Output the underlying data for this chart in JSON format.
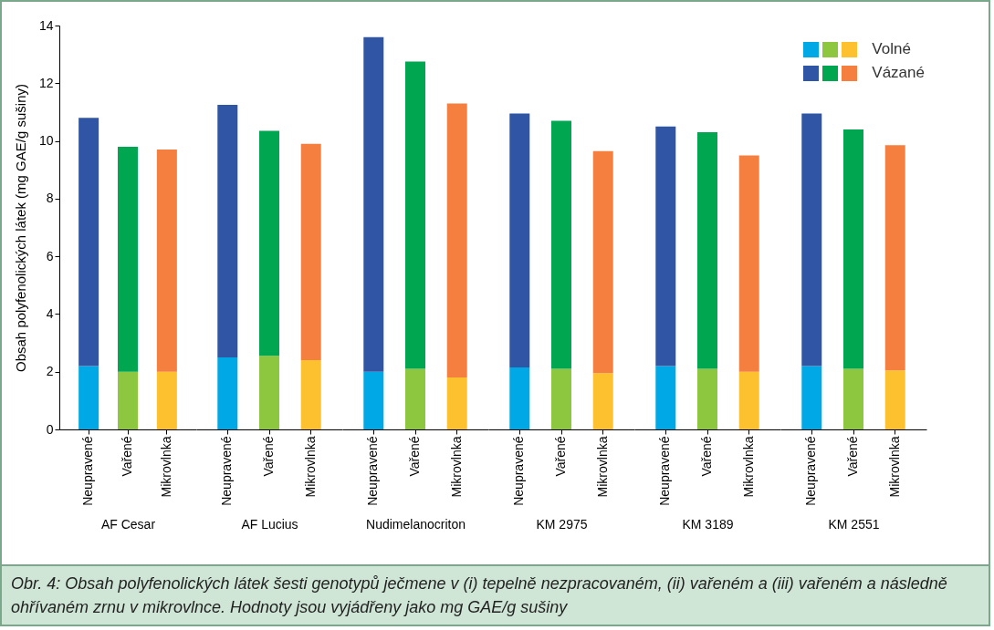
{
  "chart_data": [
    {
      "type": "bar",
      "stacked": true,
      "ylabel": "Obsah polyfenolických látek (mg GAE/g sušiny)",
      "xlabel": "AF Cesar",
      "legend": "top right",
      "categories": [
        "Neupravené",
        "Vařené",
        "Mikrovlnka"
      ],
      "ylim": [
        0,
        14
      ],
      "yticks": [
        0,
        2,
        4,
        6,
        8,
        10,
        12,
        14
      ],
      "annotations": [
        "Obr. 4: Obsah polyfenolických látek šesti genotypů ječmene v (i) tepelně nezpracovaném, (ii) vařeném a (iii) vařeném a následně ohřívaném zrnu v mikrovlnce. Hodnoty jsou vyjádřeny jako mg GAE/g sušiny"
      ],
      "series": [
        {
          "name": "Volné",
          "colors": [
            "#00a9e6",
            "#8dc63f",
            "#fdc02f"
          ],
          "values": [
            2.2,
            2.0,
            2.0
          ]
        },
        {
          "name": "Vázané",
          "colors": [
            "#2f55a4",
            "#00a650",
            "#f47f3e"
          ],
          "values": [
            8.6,
            7.8,
            7.7
          ]
        }
      ]
    },
    {
      "type": "bar",
      "stacked": true,
      "xlabel": "AF Lucius",
      "categories": [
        "Neupravené",
        "Vařené",
        "Mikrovlnka"
      ],
      "ylim": [
        0,
        14
      ],
      "yticks": [
        0,
        2,
        4,
        6,
        8,
        10,
        12,
        14
      ],
      "tick_labels": "x",
      "series": [
        {
          "colors": [
            "#00a9e6",
            "#8dc63f",
            "#fdc02f"
          ],
          "values": [
            2.5,
            2.55,
            2.4
          ]
        },
        {
          "colors": [
            "#2f55a4",
            "#00a650",
            "#f47f3e"
          ],
          "values": [
            8.75,
            7.8,
            7.5
          ]
        }
      ]
    },
    {
      "type": "bar",
      "stacked": true,
      "xlabel": "Nudimelanocriton",
      "categories": [
        "Neupravené",
        "Vařené",
        "Mikrovlnka"
      ],
      "ylim": [
        0,
        14
      ],
      "yticks": [
        0,
        2,
        4,
        6,
        8,
        10,
        12,
        14
      ],
      "tick_labels": "x",
      "series": [
        {
          "colors": [
            "#00a9e6",
            "#8dc63f",
            "#fdc02f"
          ],
          "values": [
            2.0,
            2.1,
            1.8
          ]
        },
        {
          "colors": [
            "#2f55a4",
            "#00a650",
            "#f47f3e"
          ],
          "values": [
            11.6,
            10.65,
            9.5
          ]
        }
      ]
    },
    {
      "type": "bar",
      "stacked": true,
      "xlabel": "KM 2975",
      "categories": [
        "Neupravené",
        "Vařené",
        "Mikrovlnka"
      ],
      "ylim": [
        0,
        14
      ],
      "yticks": [
        0,
        2,
        4,
        6,
        8,
        10,
        12,
        14
      ],
      "tick_labels": "x",
      "series": [
        {
          "colors": [
            "#00a9e6",
            "#8dc63f",
            "#fdc02f"
          ],
          "values": [
            2.15,
            2.1,
            1.95
          ]
        },
        {
          "colors": [
            "#2f55a4",
            "#00a650",
            "#f47f3e"
          ],
          "values": [
            8.8,
            8.6,
            7.7
          ]
        }
      ]
    },
    {
      "type": "bar",
      "stacked": true,
      "xlabel": "KM 3189",
      "categories": [
        "Neupravené",
        "Vařené",
        "Mikrovlnka"
      ],
      "ylim": [
        0,
        14
      ],
      "yticks": [
        0,
        2,
        4,
        6,
        8,
        10,
        12,
        14
      ],
      "tick_labels": "x",
      "series": [
        {
          "colors": [
            "#00a9e6",
            "#8dc63f",
            "#fdc02f"
          ],
          "values": [
            2.2,
            2.1,
            2.0
          ]
        },
        {
          "colors": [
            "#2f55a4",
            "#00a650",
            "#f47f3e"
          ],
          "values": [
            8.3,
            8.2,
            7.5
          ]
        }
      ]
    },
    {
      "type": "bar",
      "stacked": true,
      "xlabel": "KM 2551",
      "categories": [
        "Neupravené",
        "Vařené",
        "Mikrovlnka"
      ],
      "ylim": [
        0,
        14
      ],
      "yticks": [
        0,
        2,
        4,
        6,
        8,
        10,
        12,
        14
      ],
      "tick_labels": "x",
      "series": [
        {
          "colors": [
            "#00a9e6",
            "#8dc63f",
            "#fdc02f"
          ],
          "values": [
            2.2,
            2.1,
            2.05
          ]
        },
        {
          "colors": [
            "#2f55a4",
            "#00a650",
            "#f47f3e"
          ],
          "values": [
            8.75,
            8.3,
            7.8
          ]
        }
      ]
    }
  ]
}
